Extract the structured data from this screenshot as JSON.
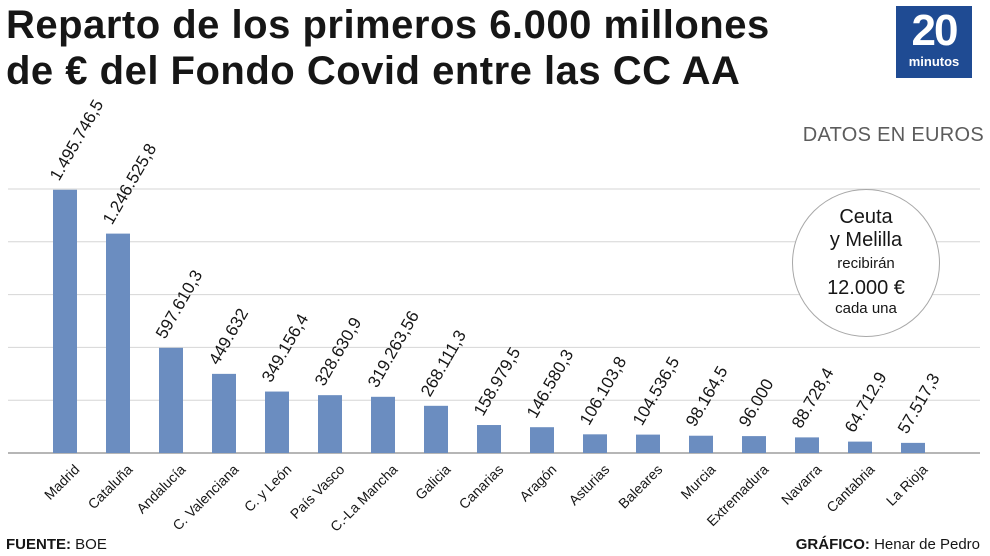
{
  "header": {
    "title_line1": "Reparto de los primeros 6.000 millones",
    "title_line2": "de € del Fondo Covid entre las CC AA",
    "logo_number": "20",
    "logo_word": "minutos",
    "logo_color": "#1f4b93"
  },
  "units_label": "DATOS EN EUROS",
  "note": {
    "line1": "Ceuta",
    "line2": "y Melilla",
    "line3": "recibirán",
    "line4": "12.000 €",
    "line5": "cada una"
  },
  "footer": {
    "source_label": "FUENTE:",
    "source_value": "BOE",
    "credit_label": "GRÁFICO:",
    "credit_value": "Henar de Pedro"
  },
  "chart_data": {
    "type": "bar",
    "title": "Reparto de los primeros 6.000 millones de € del Fondo Covid entre las CC AA",
    "xlabel": "",
    "ylabel": "",
    "ylim": [
      0,
      1500000
    ],
    "grid": true,
    "bar_color": "#6b8dc0",
    "categories": [
      "Madrid",
      "Cataluña",
      "Andalucía",
      "C. Valenciana",
      "C. y León",
      "País Vasco",
      "C.-La Mancha",
      "Galicia",
      "Canarias",
      "Aragón",
      "Asturias",
      "Baleares",
      "Murcia",
      "Extremadura",
      "Navarra",
      "Cantabria",
      "La Rioja"
    ],
    "values": [
      1495746.5,
      1246525.8,
      597610.3,
      449632,
      349156.4,
      328630.9,
      319263.56,
      268111.3,
      158979.5,
      146580.3,
      106103.8,
      104536.5,
      98164.5,
      96000,
      88728.4,
      64712.9,
      57517.3
    ],
    "value_labels": [
      "1.495.746,5",
      "1.246.525,8",
      "597.610,3",
      "449.632",
      "349.156,4",
      "328.630,9",
      "319.263,56",
      "268.111,3",
      "158.979,5",
      "146.580,3",
      "106.103,8",
      "104.536,5",
      "98.164,5",
      "96.000",
      "88.728,4",
      "64.712,9",
      "57.517,3"
    ]
  }
}
